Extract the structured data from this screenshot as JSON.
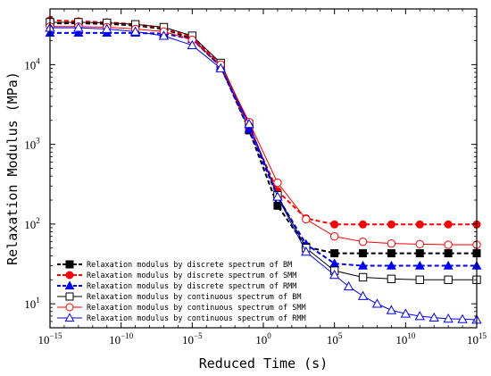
{
  "chart_data": {
    "type": "line",
    "xlabel": "Reduced Time (s)",
    "ylabel": "Relaxation Modulus (MPa)",
    "x_scale": "log",
    "y_scale": "log",
    "xlim": [
      1e-15,
      1000000000000000.0
    ],
    "ylim": [
      5,
      50000
    ],
    "x_ticks": [
      {
        "base": "10",
        "exp": "−15",
        "value": 1e-15
      },
      {
        "base": "10",
        "exp": "−10",
        "value": 1e-10
      },
      {
        "base": "10",
        "exp": "−5",
        "value": 1e-05
      },
      {
        "base": "10",
        "exp": "0",
        "value": 1
      },
      {
        "base": "10",
        "exp": "5",
        "value": 100000.0
      },
      {
        "base": "10",
        "exp": "10",
        "value": 10000000000.0
      },
      {
        "base": "10",
        "exp": "15",
        "value": 1000000000000000.0
      }
    ],
    "y_ticks": [
      {
        "base": "10",
        "exp": "1",
        "value": 10
      },
      {
        "base": "10",
        "exp": "2",
        "value": 100
      },
      {
        "base": "10",
        "exp": "3",
        "value": 1000
      },
      {
        "base": "10",
        "exp": "4",
        "value": 10000
      }
    ],
    "grid": false,
    "legend_position": "bottom-left",
    "series": [
      {
        "name": "Relaxation modulus by discrete spectrum of BM",
        "color": "#000000",
        "marker": "square",
        "filled": true,
        "dashed": true,
        "x": [
          1e-15,
          1e-13,
          1e-11,
          1e-09,
          1e-07,
          1e-05,
          0.001,
          0.1,
          10.0,
          1000.0,
          100000.0,
          10000000.0,
          1000000000.0,
          100000000000.0,
          10000000000000.0,
          1000000000000000.0
        ],
        "values": [
          33000,
          33000,
          32500,
          31000,
          28000,
          21000,
          9500,
          1500,
          170,
          52,
          43,
          43,
          43,
          43,
          43,
          43
        ]
      },
      {
        "name": "Relaxation modulus by discrete spectrum of SMM",
        "color": "#ff0000",
        "marker": "circle",
        "filled": true,
        "dashed": true,
        "x": [
          1e-15,
          1e-13,
          1e-11,
          1e-09,
          1e-07,
          1e-05,
          0.001,
          0.1,
          10.0,
          1000.0,
          100000.0,
          10000000.0,
          1000000000.0,
          100000000000.0,
          10000000000000.0,
          1000000000000000.0
        ],
        "values": [
          36000,
          35000,
          34000,
          32000,
          29000,
          22000,
          10000,
          1600,
          260,
          118,
          99,
          99,
          99,
          99,
          99,
          99
        ]
      },
      {
        "name": "Relaxation modulus by discrete spectrum of RMM",
        "color": "#0000ff",
        "marker": "triangle",
        "filled": true,
        "dashed": true,
        "x": [
          1e-15,
          1e-13,
          1e-11,
          1e-09,
          1e-07,
          1e-05,
          0.001,
          0.1,
          10.0,
          1000.0,
          100000.0,
          10000000.0,
          1000000000.0,
          100000000000.0,
          10000000000000.0,
          1000000000000000.0
        ],
        "values": [
          25000,
          25000,
          25000,
          25000,
          24500,
          21000,
          9500,
          1550,
          220,
          56,
          32,
          30,
          30,
          30,
          30,
          30
        ]
      },
      {
        "name": "Relaxation modulus by continuous spectrum of BM",
        "color": "#000000",
        "marker": "square",
        "filled": false,
        "dashed": false,
        "x": [
          1e-15,
          1e-13,
          1e-11,
          1e-09,
          1e-07,
          1e-05,
          0.001,
          0.1,
          10.0,
          1000.0,
          100000.0,
          10000000.0,
          1000000000.0,
          100000000000.0,
          10000000000000.0,
          1000000000000000.0
        ],
        "values": [
          34000,
          34000,
          33500,
          32000,
          29500,
          23000,
          10500,
          1800,
          230,
          50,
          26,
          21.5,
          20.5,
          20,
          20,
          20
        ]
      },
      {
        "name": "Relaxation modulus by continuous spectrum of SMM",
        "color": "#ff0000",
        "marker": "circle",
        "filled": false,
        "dashed": false,
        "x": [
          1e-15,
          1e-13,
          1e-11,
          1e-09,
          1e-07,
          1e-05,
          0.001,
          0.1,
          10.0,
          1000.0,
          100000.0,
          10000000.0,
          1000000000.0,
          100000000000.0,
          10000000000000.0,
          1000000000000000.0
        ],
        "values": [
          30000,
          30000,
          29500,
          28000,
          26000,
          20500,
          10000,
          1900,
          330,
          115,
          70,
          60,
          57,
          56,
          55,
          55
        ]
      },
      {
        "name": "Relaxation modulus by continuous spectrum of RMM",
        "color": "#0000ff",
        "marker": "triangle",
        "filled": false,
        "dashed": false,
        "x": [
          1e-15,
          1e-13,
          1e-11,
          1e-09,
          1e-07,
          1e-05,
          0.001,
          0.1,
          10.0,
          1000.0,
          100000.0,
          1000000.0,
          10000000.0,
          100000000.0,
          1000000000.0,
          10000000000.0,
          100000000000.0,
          1000000000000.0,
          10000000000000.0,
          100000000000000.0,
          1000000000000000.0
        ],
        "values": [
          29000,
          29000,
          28000,
          26000,
          23000,
          17500,
          9000,
          1800,
          220,
          45,
          23,
          16.5,
          12.5,
          10,
          8.3,
          7.5,
          7,
          6.7,
          6.5,
          6.4,
          6.3
        ]
      }
    ]
  }
}
